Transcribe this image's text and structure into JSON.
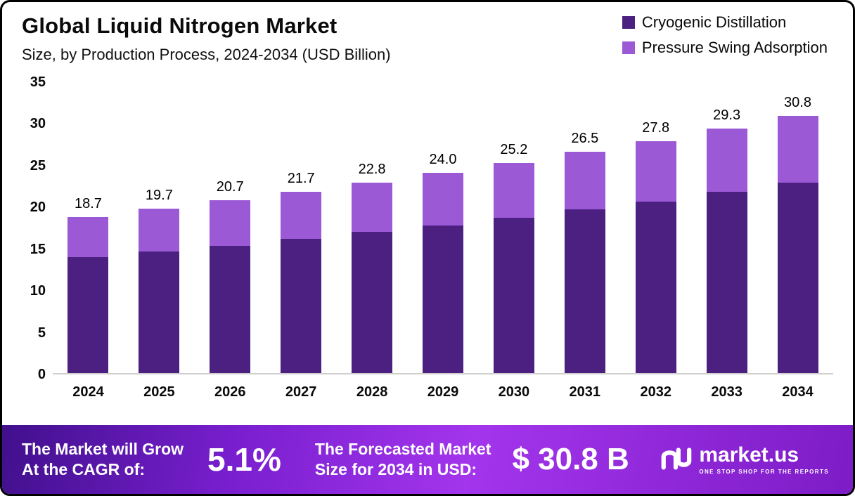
{
  "header": {
    "title": "Global Liquid Nitrogen Market",
    "subtitle": "Size, by Production Process, 2024-2034 (USD Billion)"
  },
  "legend": [
    {
      "label": "Cryogenic Distillation",
      "color": "#4B2081"
    },
    {
      "label": "Pressure Swing Adsorption",
      "color": "#9B59D6"
    }
  ],
  "chart_data": {
    "type": "bar",
    "stacked": true,
    "title": "Global Liquid Nitrogen Market Size, by Production Process, 2024-2034 (USD Billion)",
    "xlabel": "",
    "ylabel": "",
    "categories": [
      "2024",
      "2025",
      "2026",
      "2027",
      "2028",
      "2029",
      "2030",
      "2031",
      "2032",
      "2033",
      "2034"
    ],
    "series": [
      {
        "name": "Cryogenic Distillation",
        "color": "#4B2081",
        "values": [
          13.9,
          14.6,
          15.2,
          16.1,
          16.9,
          17.7,
          18.6,
          19.6,
          20.5,
          21.7,
          22.8
        ]
      },
      {
        "name": "Pressure Swing Adsorption",
        "color": "#9B59D6",
        "values": [
          4.8,
          5.1,
          5.5,
          5.6,
          5.9,
          6.3,
          6.6,
          6.9,
          7.3,
          7.6,
          8.0
        ]
      }
    ],
    "totals": [
      "18.7",
      "19.7",
      "20.7",
      "21.7",
      "22.8",
      "24.0",
      "25.2",
      "26.5",
      "27.8",
      "29.3",
      "30.8"
    ],
    "yticks": [
      0,
      5,
      10,
      15,
      20,
      25,
      30,
      35
    ],
    "ylim": [
      0,
      35
    ],
    "grid": false,
    "legend_position": "top-right"
  },
  "banner": {
    "cagr_label_line1": "The Market will Grow",
    "cagr_label_line2": "At the CAGR of:",
    "cagr_value": "5.1%",
    "forecast_label_line1": "The Forecasted Market",
    "forecast_label_line2": "Size for 2034 in USD:",
    "forecast_value": "$ 30.8 B",
    "brand_name": "market.us",
    "brand_tagline": "ONE STOP SHOP FOR THE REPORTS"
  }
}
